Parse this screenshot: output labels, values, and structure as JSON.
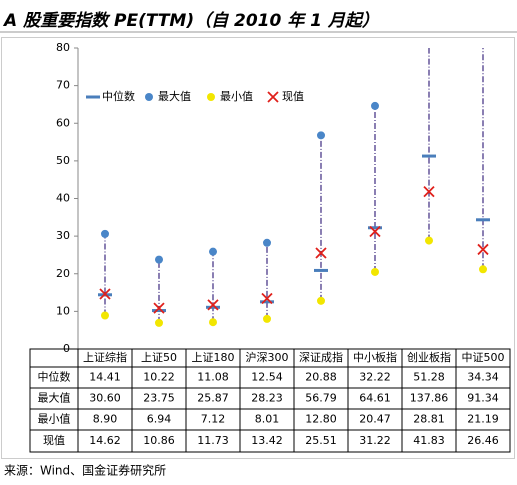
{
  "chart_data": {
    "type": "range",
    "title": "A 股重要指数 PE(TTM)（自 2010 年 1 月起）",
    "source": "来源：Wind、国金证券研究所",
    "categories": [
      "上证综指",
      "上证50",
      "上证180",
      "沪深300",
      "深证成指",
      "中小板指",
      "创业板指",
      "中证500"
    ],
    "series": [
      {
        "name": "中位数",
        "color": "#4a7ebb",
        "values": [
          14.41,
          10.22,
          11.08,
          12.54,
          20.88,
          32.22,
          51.28,
          34.34
        ],
        "value_labels": [
          "14.41",
          "10.22",
          "11.08",
          "12.54",
          "20.88",
          "32.22",
          "51.28",
          "34.34"
        ]
      },
      {
        "name": "最大值",
        "color": "#4a86c8",
        "values": [
          30.6,
          23.75,
          25.87,
          28.23,
          56.79,
          64.61,
          137.86,
          91.34
        ],
        "value_labels": [
          "30.60",
          "23.75",
          "25.87",
          "28.23",
          "56.79",
          "64.61",
          "137.86",
          "91.34"
        ]
      },
      {
        "name": "最小值",
        "color": "#f2e600",
        "values": [
          8.9,
          6.94,
          7.12,
          8.01,
          12.8,
          20.47,
          28.81,
          21.19
        ],
        "value_labels": [
          "8.90",
          "6.94",
          "7.12",
          "8.01",
          "12.80",
          "20.47",
          "28.81",
          "21.19"
        ]
      },
      {
        "name": "现值",
        "color": "#e0201b",
        "values": [
          14.62,
          10.86,
          11.73,
          13.42,
          25.51,
          31.22,
          41.83,
          26.46
        ],
        "value_labels": [
          "14.62",
          "10.86",
          "11.73",
          "13.42",
          "25.51",
          "31.22",
          "41.83",
          "26.46"
        ]
      }
    ],
    "range_color": "#3c2a80",
    "ylim": [
      0,
      80
    ],
    "yticks": [
      0,
      10,
      20,
      30,
      40,
      50,
      60,
      70,
      80
    ],
    "legend": "upper left"
  }
}
